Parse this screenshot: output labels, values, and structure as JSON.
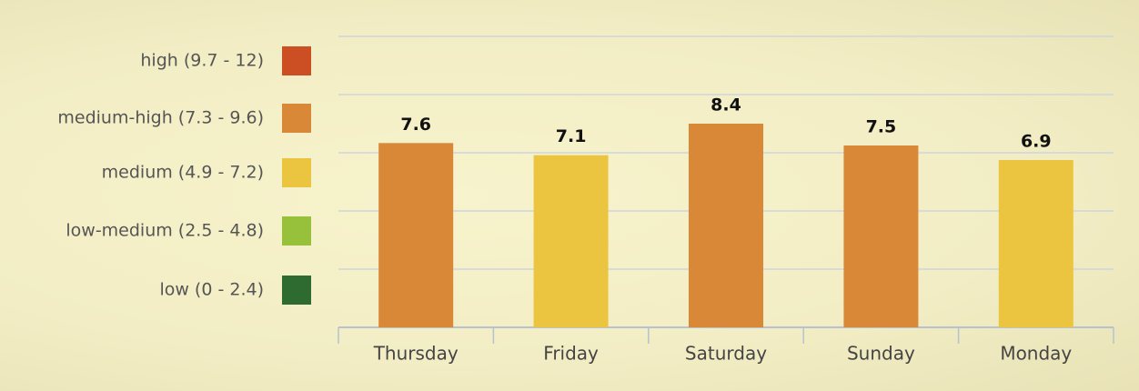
{
  "chart_data": {
    "type": "bar",
    "categories": [
      "Thursday",
      "Friday",
      "Saturday",
      "Sunday",
      "Monday"
    ],
    "values": [
      7.6,
      7.1,
      8.4,
      7.5,
      6.9
    ],
    "colors": [
      "#d98838",
      "#ecc540",
      "#d98838",
      "#d98838",
      "#ecc540"
    ],
    "ylim": [
      0,
      12
    ],
    "yticks": [
      0,
      2.4,
      4.8,
      7.2,
      9.6,
      12
    ],
    "grid": true,
    "legend": [
      {
        "label": "high (9.7 - 12)",
        "color": "#cc4f23"
      },
      {
        "label": "medium-high (7.3 - 9.6)",
        "color": "#d98838"
      },
      {
        "label": "medium (4.9 - 7.2)",
        "color": "#ecc540"
      },
      {
        "label": "low-medium (2.5 - 4.8)",
        "color": "#97c03b"
      },
      {
        "label": "low (0 - 2.4)",
        "color": "#2e6b30"
      }
    ]
  }
}
